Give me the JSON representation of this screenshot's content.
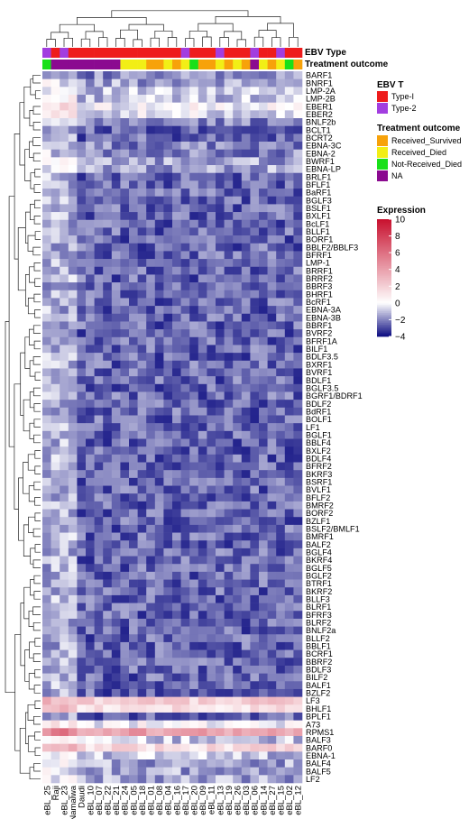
{
  "chart_data": {
    "type": "heatmap",
    "title": "",
    "annotation_tracks": [
      {
        "label": "EBV Type"
      },
      {
        "label": "Treatment outcome"
      }
    ],
    "columns": [
      "eBL_25",
      "Raji",
      "eBL_23",
      "Namalwa",
      "Daudi",
      "eBL_10",
      "eBL_07",
      "eBL_22",
      "eBL_21",
      "eBL_24",
      "eBL_05",
      "eBL_18",
      "eBL_01",
      "eBL_08",
      "eBL_04",
      "eBL_16",
      "eBL_17",
      "eBL_20",
      "eBL_09",
      "eBL_11",
      "eBL_13",
      "eBL_19",
      "eBL_26",
      "eBL_03",
      "eBL_06",
      "eBL_14",
      "eBL_27",
      "eBL_15",
      "eBL_02",
      "eBL_12"
    ],
    "rows": [
      "BARF1",
      "BNRF1",
      "LMP-2A",
      "LMP-2B",
      "EBER1",
      "EBER2",
      "BNLF2b",
      "BCLT1",
      "BCRT2",
      "EBNA-3C",
      "EBNA-2",
      "BWRF1",
      "EBNA-LP",
      "BRLF1",
      "BFLF1",
      "BaRF1",
      "BGLF3",
      "BSLF1",
      "BXLF1",
      "BcLF1",
      "BLLF1",
      "BORF1",
      "BBLF2/BBLF3",
      "BFRF1",
      "LMP-1",
      "BRRF1",
      "BRRF2",
      "BBRF3",
      "BHRF1",
      "BcRF1",
      "EBNA-3A",
      "EBNA-3B",
      "BBRF1",
      "BVRF2",
      "BFRF1A",
      "BILF1",
      "BDLF3.5",
      "BXRF1",
      "BVRF1",
      "BDLF1",
      "BGLF3.5",
      "BGRF1/BDRF1",
      "BDLF2",
      "BdRF1",
      "BOLF1",
      "LF1",
      "BGLF1",
      "BBLF4",
      "BXLF2",
      "BDLF4",
      "BFRF2",
      "BKRF3",
      "BSRF1",
      "BVLF1",
      "BFLF2",
      "BMRF2",
      "BORF2",
      "BZLF1",
      "BSLF2/BMLF1",
      "BMRF1",
      "BALF2",
      "BGLF4",
      "BKRF4",
      "BGLF5",
      "BGLF2",
      "BTRF1",
      "BKRF2",
      "BLLF3",
      "BLRF1",
      "BFRF3",
      "BLRF2",
      "BNLF2a",
      "BLLF2",
      "BBLF1",
      "BCRF1",
      "BBRF2",
      "BDLF3",
      "BILF2",
      "BALF1",
      "BZLF2",
      "LF3",
      "BHLF1",
      "BPLF1",
      "A73",
      "RPMS1",
      "BALF3",
      "BARF0",
      "EBNA-1",
      "BALF4",
      "BALF5",
      "LF2"
    ],
    "ebv_type": [
      "Type-2",
      "Type-1",
      "Type-2",
      "Type-1",
      "Type-1",
      "Type-1",
      "Type-1",
      "Type-1",
      "Type-1",
      "Type-1",
      "Type-1",
      "Type-1",
      "Type-1",
      "Type-1",
      "Type-1",
      "Type-1",
      "Type-2",
      "Type-1",
      "Type-1",
      "Type-1",
      "Type-2",
      "Type-1",
      "Type-1",
      "Type-1",
      "Type-2",
      "Type-1",
      "Type-1",
      "Type-2",
      "Type-1",
      "Type-1"
    ],
    "treatment_outcome": [
      "Not-Received_Died",
      "NA",
      "NA",
      "NA",
      "NA",
      "NA",
      "NA",
      "NA",
      "NA",
      "Received_Died",
      "Received_Died",
      "Received_Died",
      "Received_Survived",
      "Received_Survived",
      "Received_Died",
      "Received_Survived",
      "Received_Died",
      "Not-Received_Died",
      "Received_Survived",
      "Received_Survived",
      "Received_Died",
      "Received_Survived",
      "Received_Died",
      "Received_Survived",
      "NA",
      "Received_Died",
      "Received_Survived",
      "Received_Died",
      "Not-Received_Died",
      "Received_Survived"
    ],
    "row_profile": {
      "BARF1": -2,
      "BNRF1": -1.5,
      "LMP-2A": -1,
      "LMP-2B": -1,
      "EBER1": 0,
      "EBER2": -0.5,
      "BNLF2b": -2,
      "BCLT1": -2.5,
      "BCRT2": -2.5,
      "EBNA-3C": -2,
      "EBNA-2": -2,
      "BWRF1": -1.5,
      "EBNA-LP": -1.5,
      "LF3": 2,
      "BHLF1": 1.5,
      "A73": 0,
      "RPMS1": 4,
      "BALF3": -1,
      "BARF0": 1.5,
      "EBNA-1": -1,
      "BALF4": -1.5,
      "BALF5": -1.5,
      "LF2": -1.5,
      "default": -2.5
    },
    "color_scale": {
      "legend_title": "Expression",
      "ticks": [
        10,
        8,
        6,
        4,
        2,
        0,
        -2,
        -4
      ],
      "min": -4,
      "max": 10,
      "low_color": "#0b0b80",
      "mid_color": "#ffffff",
      "high_color": "#c8102e",
      "mid_value": 0
    },
    "legends": {
      "ebv_type": {
        "title": "EBV T",
        "items": [
          {
            "label": "Type-I",
            "key": "Type-1",
            "color": "#ee1c1c"
          },
          {
            "label": "Type-2",
            "key": "Type-2",
            "color": "#a23ee0"
          }
        ]
      },
      "treatment_outcome": {
        "title": "Treatment outcome",
        "items": [
          {
            "label": "Received_Survived",
            "key": "Received_Survived",
            "color": "#f7a20a"
          },
          {
            "label": "Received_Died",
            "key": "Received_Died",
            "color": "#f2ee16"
          },
          {
            "label": "Not-Received_Died",
            "key": "Not-Received_Died",
            "color": "#19e019"
          },
          {
            "label": "NA",
            "key": "NA",
            "color": "#8b0a90"
          }
        ]
      }
    },
    "dendrograms": {
      "rows": true,
      "columns": true
    },
    "xlabel": "",
    "ylabel": ""
  }
}
